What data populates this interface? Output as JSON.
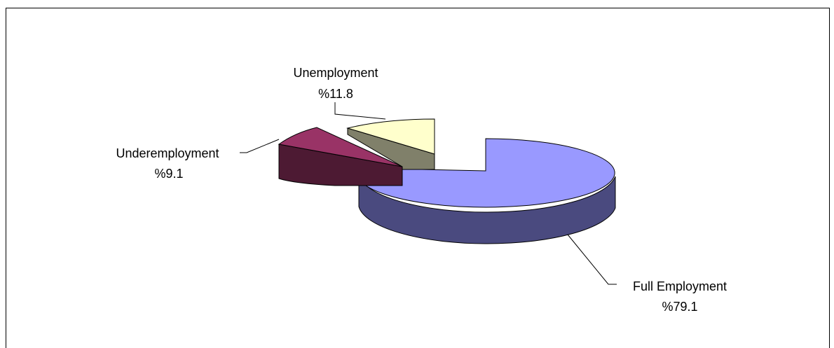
{
  "chart_data": {
    "type": "pie",
    "title": "",
    "categories": [
      "Full Employment",
      "Underemployment",
      "Unemployment"
    ],
    "values": [
      79.1,
      9.1,
      11.8
    ],
    "value_labels": [
      "%79.1",
      "%9.1",
      "%11.8"
    ],
    "exploded": true,
    "three_d": true,
    "legend": "none"
  },
  "colors": {
    "full_top": "#9999ff",
    "full_side": "#4a4a7f",
    "under_top": "#993366",
    "under_side": "#4d1a33",
    "unemp_top": "#ffffcc",
    "unemp_side": "#80806a"
  }
}
